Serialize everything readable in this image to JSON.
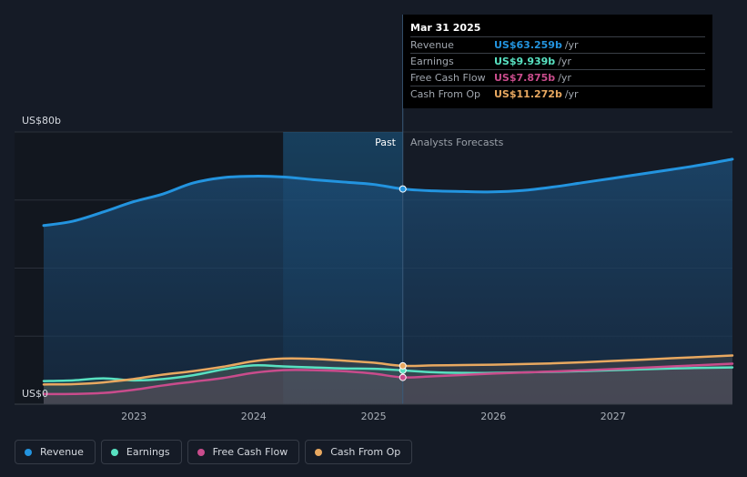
{
  "chart_data": {
    "type": "line",
    "y_axis_labels": [
      "US$80b",
      "US$0"
    ],
    "ylim": [
      0,
      80
    ],
    "x_ticks": [
      "2023",
      "2024",
      "2025",
      "2026",
      "2027"
    ],
    "xlim": [
      "2022-04-01",
      "2027-12-31"
    ],
    "region_labels": {
      "past": "Past",
      "forecast": "Analysts Forecasts"
    },
    "highlight_date": "2025-03-31",
    "series": [
      {
        "name": "Revenue",
        "color": "#2394df",
        "x": [
          "2022-04-01",
          "2022-06-30",
          "2022-09-30",
          "2022-12-31",
          "2023-03-31",
          "2023-06-30",
          "2023-09-30",
          "2023-12-31",
          "2024-03-31",
          "2024-06-30",
          "2024-09-30",
          "2024-12-31",
          "2025-03-31",
          "2025-06-30",
          "2025-09-30",
          "2025-12-31",
          "2026-03-31",
          "2026-06-30",
          "2026-09-30",
          "2026-12-31",
          "2027-03-31",
          "2027-06-30",
          "2027-09-30",
          "2027-12-31"
        ],
        "y": [
          52.5,
          53.8,
          56.5,
          59.5,
          61.8,
          65.0,
          66.6,
          67.0,
          66.8,
          66.0,
          65.3,
          64.6,
          63.259,
          62.7,
          62.5,
          62.4,
          62.8,
          63.8,
          65.1,
          66.4,
          67.7,
          69.0,
          70.4,
          72.0
        ]
      },
      {
        "name": "Earnings",
        "color": "#58e1c1",
        "x": [
          "2022-04-01",
          "2022-06-30",
          "2022-09-30",
          "2022-12-31",
          "2023-03-31",
          "2023-06-30",
          "2023-09-30",
          "2023-12-31",
          "2024-03-31",
          "2024-06-30",
          "2024-09-30",
          "2024-12-31",
          "2025-03-31",
          "2025-06-30",
          "2025-09-30",
          "2025-12-31",
          "2026-06-30",
          "2026-12-31",
          "2027-06-30",
          "2027-12-31"
        ],
        "y": [
          6.8,
          7.0,
          7.6,
          7.0,
          7.4,
          8.5,
          10.2,
          11.4,
          11.1,
          10.8,
          10.5,
          10.4,
          9.939,
          9.4,
          9.2,
          9.2,
          9.5,
          10.0,
          10.5,
          10.8
        ]
      },
      {
        "name": "Free Cash Flow",
        "color": "#c94c8c",
        "x": [
          "2022-04-01",
          "2022-06-30",
          "2022-09-30",
          "2022-12-31",
          "2023-03-31",
          "2023-06-30",
          "2023-09-30",
          "2023-12-31",
          "2024-03-31",
          "2024-06-30",
          "2024-09-30",
          "2024-12-31",
          "2025-03-31",
          "2025-06-30",
          "2025-09-30",
          "2025-12-31",
          "2026-06-30",
          "2026-12-31",
          "2027-06-30",
          "2027-12-31"
        ],
        "y": [
          3.0,
          3.0,
          3.3,
          4.2,
          5.5,
          6.6,
          7.7,
          9.2,
          10.0,
          10.0,
          9.7,
          9.0,
          7.875,
          8.2,
          8.6,
          9.0,
          9.6,
          10.3,
          11.1,
          11.9
        ]
      },
      {
        "name": "Cash From Op",
        "color": "#e8a860",
        "x": [
          "2022-04-01",
          "2022-06-30",
          "2022-09-30",
          "2022-12-31",
          "2023-03-31",
          "2023-06-30",
          "2023-09-30",
          "2023-12-31",
          "2024-03-31",
          "2024-06-30",
          "2024-09-30",
          "2024-12-31",
          "2025-03-31",
          "2025-06-30",
          "2025-09-30",
          "2025-12-31",
          "2026-06-30",
          "2026-12-31",
          "2027-06-30",
          "2027-12-31"
        ],
        "y": [
          5.8,
          5.9,
          6.4,
          7.4,
          8.7,
          9.7,
          11.0,
          12.6,
          13.4,
          13.3,
          12.8,
          12.2,
          11.272,
          11.4,
          11.5,
          11.6,
          12.0,
          12.7,
          13.5,
          14.3
        ]
      }
    ]
  },
  "tooltip": {
    "date": "Mar 31 2025",
    "rows": [
      {
        "label": "Revenue",
        "value": "US$63.259b",
        "unit": "/yr",
        "color": "#2394df"
      },
      {
        "label": "Earnings",
        "value": "US$9.939b",
        "unit": "/yr",
        "color": "#58e1c1"
      },
      {
        "label": "Free Cash Flow",
        "value": "US$7.875b",
        "unit": "/yr",
        "color": "#c94c8c"
      },
      {
        "label": "Cash From Op",
        "value": "US$11.272b",
        "unit": "/yr",
        "color": "#e8a860"
      }
    ]
  },
  "legend": [
    {
      "label": "Revenue",
      "color": "#2394df"
    },
    {
      "label": "Earnings",
      "color": "#58e1c1"
    },
    {
      "label": "Free Cash Flow",
      "color": "#c94c8c"
    },
    {
      "label": "Cash From Op",
      "color": "#e8a860"
    }
  ]
}
